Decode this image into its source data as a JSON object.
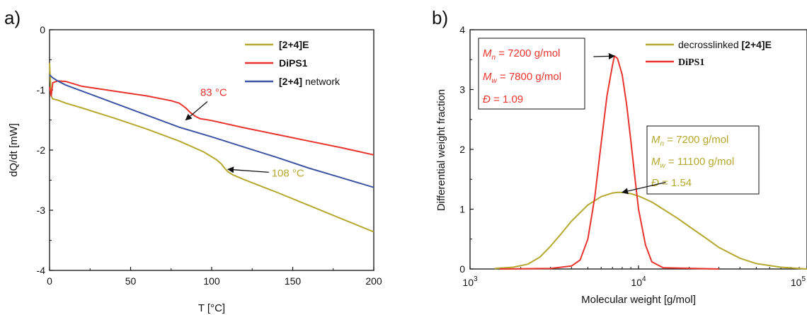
{
  "chart_data": [
    {
      "panel_label": "a)",
      "type": "line",
      "xlabel": "T [°C]",
      "ylabel": "dQ/dt [mW]",
      "xlim": [
        0,
        200
      ],
      "ylim": [
        -4,
        0
      ],
      "xticks": [
        0,
        50,
        100,
        150,
        200
      ],
      "yticks": [
        0,
        -1,
        -2,
        -3,
        -4
      ],
      "legend_position": "top-right",
      "series": [
        {
          "name_bold": "[2+4]E",
          "name_rest": "",
          "color": "#b5a82f",
          "x": [
            0,
            1,
            2,
            5,
            10,
            20,
            40,
            60,
            80,
            95,
            103,
            106,
            108,
            110,
            113,
            120,
            140,
            160,
            180,
            200
          ],
          "y": [
            -0.55,
            -1.1,
            -1.15,
            -1.17,
            -1.22,
            -1.3,
            -1.47,
            -1.65,
            -1.85,
            -2.03,
            -2.16,
            -2.23,
            -2.3,
            -2.36,
            -2.41,
            -2.49,
            -2.7,
            -2.92,
            -3.14,
            -3.36
          ]
        },
        {
          "name_bold": "DiPS1",
          "name_rest": "",
          "color": "#e8342d",
          "x": [
            0,
            1,
            2,
            5,
            10,
            20,
            40,
            60,
            75,
            80,
            84,
            87,
            90,
            93,
            96,
            100,
            120,
            140,
            160,
            180,
            200
          ],
          "y": [
            -0.95,
            -1.1,
            -0.88,
            -0.85,
            -0.86,
            -0.94,
            -1.02,
            -1.1,
            -1.18,
            -1.22,
            -1.3,
            -1.38,
            -1.44,
            -1.48,
            -1.49,
            -1.51,
            -1.63,
            -1.74,
            -1.85,
            -1.96,
            -2.08
          ]
        },
        {
          "name_bold": "[2+4]",
          "name_rest": " network",
          "color": "#3d54a4",
          "x": [
            0,
            2,
            5,
            10,
            20,
            40,
            60,
            80,
            100,
            120,
            140,
            160,
            180,
            200
          ],
          "y": [
            -0.75,
            -0.8,
            -0.85,
            -0.92,
            -1.02,
            -1.22,
            -1.42,
            -1.62,
            -1.78,
            -1.95,
            -2.12,
            -2.3,
            -2.46,
            -2.62
          ]
        }
      ],
      "annotations": [
        {
          "text": "83 °C",
          "color": "#e8342d",
          "x": 93,
          "y": -1.1,
          "arrow_to": [
            84,
            -1.5
          ]
        },
        {
          "text": "108 °C",
          "color": "#b5a82f",
          "x": 137,
          "y": -2.44,
          "arrow_to": [
            110,
            -2.32
          ]
        }
      ]
    },
    {
      "panel_label": "b)",
      "type": "line",
      "xlabel": "Molecular weight [g/mol]",
      "ylabel": "Differential weight fraction",
      "xscale": "log",
      "xlim": [
        1000,
        100000
      ],
      "ylim": [
        0,
        4
      ],
      "xtick_base": "10",
      "xtick_exponents": [
        "3",
        "4",
        "5"
      ],
      "yticks": [
        0,
        1,
        2,
        3,
        4
      ],
      "legend_position": "top-right",
      "series": [
        {
          "name_rest": "decrosslinked ",
          "name_bold": "[2+4]E",
          "color": "#b5a82f",
          "x": [
            1400,
            1800,
            2200,
            2600,
            3000,
            3500,
            4000,
            5000,
            6000,
            7000,
            7500,
            8000,
            9000,
            10000,
            12000,
            14000,
            17000,
            20000,
            25000,
            30000,
            40000,
            50000,
            70000,
            100000
          ],
          "y": [
            0.01,
            0.03,
            0.08,
            0.2,
            0.38,
            0.6,
            0.8,
            1.07,
            1.21,
            1.27,
            1.28,
            1.28,
            1.26,
            1.22,
            1.12,
            1.0,
            0.85,
            0.71,
            0.52,
            0.36,
            0.18,
            0.09,
            0.03,
            0.0
          ]
        },
        {
          "name_bold": "DiPS1",
          "name_rest": "",
          "color": "#e8342d",
          "x": [
            1500,
            3000,
            4000,
            4500,
            5000,
            5500,
            6000,
            6500,
            7000,
            7200,
            7500,
            8000,
            8500,
            9000,
            9500,
            10000,
            11000,
            12000,
            14000,
            30000
          ],
          "y": [
            0.0,
            0.01,
            0.05,
            0.15,
            0.5,
            1.2,
            2.1,
            2.9,
            3.4,
            3.56,
            3.52,
            3.25,
            2.75,
            2.15,
            1.55,
            1.0,
            0.4,
            0.12,
            0.02,
            0.0
          ]
        }
      ],
      "boxes": [
        {
          "color": "#e8342d",
          "lines": [
            {
              "sym": "M",
              "sub": "n",
              "text": " = 7200 g/mol"
            },
            {
              "sym": "M",
              "sub": "w",
              "text": " = 7800 g/mol"
            },
            {
              "sym": "Đ",
              "sub": "",
              "text": " = 1.09"
            }
          ],
          "arrow_from": [
            5400,
            3.55
          ],
          "arrow_to": [
            7200,
            3.56
          ]
        },
        {
          "color": "#b5a82f",
          "lines": [
            {
              "sym": "M",
              "sub": "n",
              "text": " = 7200 g/mol"
            },
            {
              "sym": "M",
              "sub": "w",
              "text": " = 11100 g/mol"
            },
            {
              "sym": "Đ",
              "sub": "",
              "text": " = 1.54"
            }
          ],
          "arrow_from": [
            14500,
            1.45
          ],
          "arrow_to": [
            8000,
            1.28
          ]
        }
      ]
    }
  ]
}
